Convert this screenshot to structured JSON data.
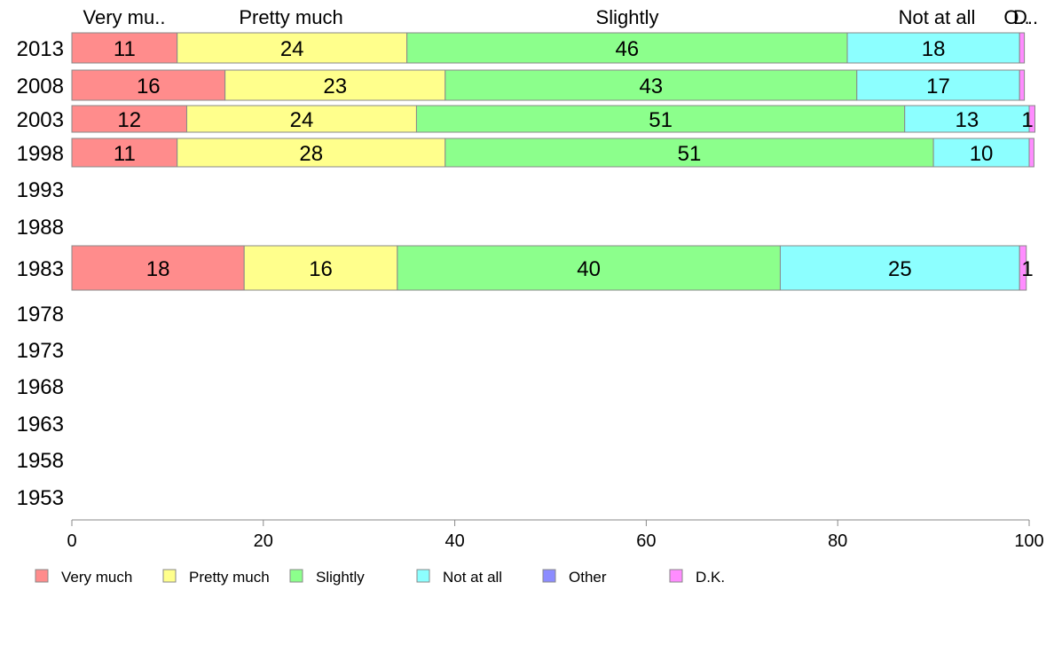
{
  "chart_data": {
    "type": "bar",
    "orientation": "horizontal",
    "stacked": true,
    "categories": [
      "2013",
      "2008",
      "2003",
      "1998",
      "1993",
      "1988",
      "1983",
      "1978",
      "1973",
      "1968",
      "1963",
      "1958",
      "1953"
    ],
    "series": [
      {
        "name": "Very much",
        "color": "#ff8c8c",
        "values": [
          11,
          16,
          12,
          11,
          null,
          null,
          18,
          null,
          null,
          null,
          null,
          null,
          null
        ]
      },
      {
        "name": "Pretty much",
        "color": "#ffff8c",
        "values": [
          24,
          23,
          24,
          28,
          null,
          null,
          16,
          null,
          null,
          null,
          null,
          null,
          null
        ]
      },
      {
        "name": "Slightly",
        "color": "#8cff8c",
        "values": [
          46,
          43,
          51,
          51,
          null,
          null,
          40,
          null,
          null,
          null,
          null,
          null,
          null
        ]
      },
      {
        "name": "Not at all",
        "color": "#8cffff",
        "values": [
          18,
          17,
          13,
          10,
          null,
          null,
          25,
          null,
          null,
          null,
          null,
          null,
          null
        ]
      },
      {
        "name": "Other",
        "color": "#8c8cff",
        "values": [
          0,
          0,
          0,
          0,
          null,
          null,
          0,
          null,
          null,
          null,
          null,
          null,
          null
        ]
      },
      {
        "name": "D.K.",
        "color": "#ff8cff",
        "values": [
          0.5,
          0.5,
          0.6,
          0.5,
          null,
          null,
          0.7,
          null,
          null,
          null,
          null,
          null,
          null
        ]
      }
    ],
    "segment_labels": [
      [
        "11",
        "24",
        "46",
        "18",
        "",
        ""
      ],
      [
        "16",
        "23",
        "43",
        "17",
        "",
        ""
      ],
      [
        "12",
        "24",
        "51",
        "13",
        "",
        "1"
      ],
      [
        "11",
        "28",
        "51",
        "10",
        "",
        ""
      ],
      [],
      [],
      [
        "18",
        "16",
        "40",
        "25",
        "",
        "1"
      ],
      [],
      [],
      [],
      [],
      [],
      []
    ],
    "top_labels": [
      "Very mu..",
      "Pretty much",
      "Slightly",
      "Not at all",
      "O..",
      "D.."
    ],
    "xlim": [
      0,
      100
    ],
    "xticks": [
      "0",
      "20",
      "40",
      "60",
      "80",
      "100"
    ],
    "legend_position": "bottom",
    "grid": false
  }
}
